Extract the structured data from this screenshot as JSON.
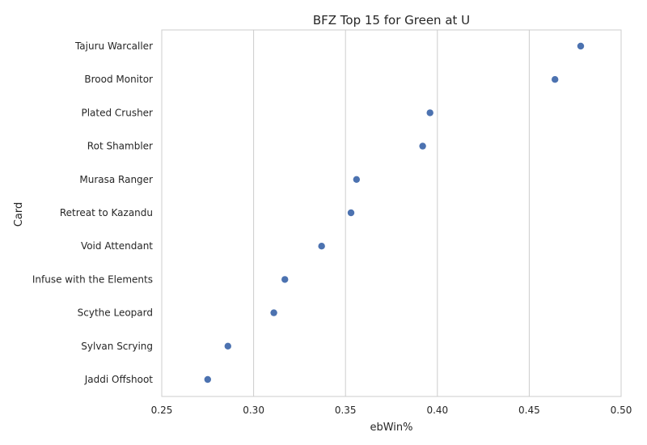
{
  "chart_data": {
    "type": "scatter",
    "title": "BFZ Top 15 for Green at U",
    "xlabel": "ebWin%",
    "ylabel": "Card",
    "xlim": [
      0.25,
      0.5
    ],
    "xticks": [
      "0.25",
      "0.30",
      "0.35",
      "0.40",
      "0.45",
      "0.50"
    ],
    "grid": "vertical",
    "categories": [
      "Tajuru Warcaller",
      "Brood Monitor",
      "Plated Crusher",
      "Rot Shambler",
      "Murasa Ranger",
      "Retreat to Kazandu",
      "Void Attendant",
      "Infuse with the Elements",
      "Scythe Leopard",
      "Sylvan Scrying",
      "Jaddi Offshoot"
    ],
    "values": [
      0.478,
      0.464,
      0.396,
      0.392,
      0.356,
      0.353,
      0.337,
      0.317,
      0.311,
      0.286,
      0.275
    ],
    "colors": {
      "point": "#4c72b0",
      "grid": "#cccccc",
      "frame": "#cccccc"
    }
  }
}
